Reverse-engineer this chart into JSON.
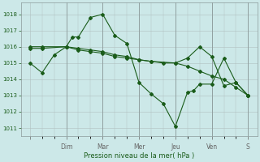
{
  "xlabel": "Pression niveau de la mer( hPa )",
  "bg_color": "#cce8e8",
  "grid_color": "#b8c8c8",
  "line_color": "#1a5c1a",
  "ylim": [
    1010.5,
    1018.7
  ],
  "yticks": [
    1011,
    1012,
    1013,
    1014,
    1015,
    1016,
    1017,
    1018
  ],
  "day_labels": [
    "",
    "Dim",
    "Mar",
    "Mer",
    "Jeu",
    "Ven",
    "S"
  ],
  "day_positions": [
    0,
    24,
    48,
    72,
    96,
    120,
    144
  ],
  "xlim": [
    -6,
    150
  ],
  "series1_x": [
    0,
    8,
    16,
    24,
    28,
    32,
    40,
    48,
    56,
    64,
    72,
    80,
    88,
    96,
    104,
    108,
    112,
    120,
    128,
    136,
    144
  ],
  "series1_y": [
    1015.0,
    1014.4,
    1015.5,
    1016.0,
    1016.6,
    1016.6,
    1017.8,
    1018.0,
    1016.7,
    1016.2,
    1013.8,
    1013.1,
    1012.5,
    1011.1,
    1013.2,
    1013.3,
    1013.7,
    1013.7,
    1015.3,
    1013.8,
    1013.0
  ],
  "series2_x": [
    0,
    8,
    24,
    32,
    40,
    48,
    56,
    64,
    72,
    80,
    96,
    104,
    112,
    120,
    128,
    136,
    144
  ],
  "series2_y": [
    1015.9,
    1015.9,
    1016.0,
    1015.8,
    1015.7,
    1015.6,
    1015.4,
    1015.3,
    1015.2,
    1015.1,
    1015.0,
    1014.8,
    1014.5,
    1014.2,
    1014.0,
    1013.5,
    1013.0
  ],
  "series3_x": [
    0,
    8,
    24,
    32,
    40,
    48,
    56,
    64,
    72,
    80,
    88,
    96,
    104,
    112,
    120,
    128,
    136,
    144
  ],
  "series3_y": [
    1016.0,
    1016.0,
    1016.0,
    1015.9,
    1015.8,
    1015.7,
    1015.5,
    1015.4,
    1015.2,
    1015.1,
    1015.0,
    1015.0,
    1015.3,
    1016.0,
    1015.4,
    1013.6,
    1013.8,
    1013.0
  ]
}
